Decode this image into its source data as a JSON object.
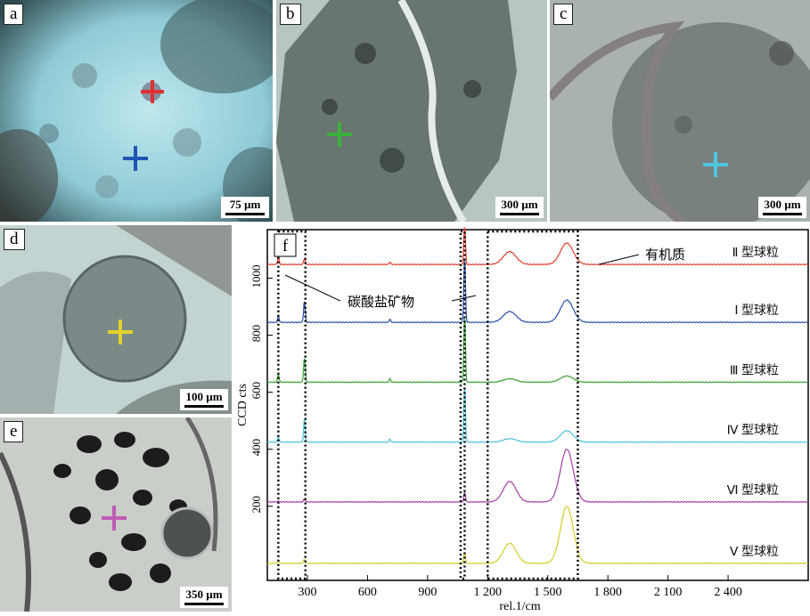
{
  "colors": {
    "marker_a_red": "#e23030",
    "marker_a_blue": "#1f55b5",
    "marker_b": "#3bb13b",
    "marker_c": "#4ec6df",
    "marker_d": "#e3d12a",
    "marker_e": "#c05ab4",
    "series_II": "#e53a2c",
    "series_I": "#2b4faa",
    "series_III": "#3aa335",
    "series_IV": "#4bc4d6",
    "series_VI": "#a43ea8",
    "series_V": "#d4cd2a"
  },
  "panels": [
    {
      "label": "a",
      "scale": "75 µm"
    },
    {
      "label": "b",
      "scale": "300 µm"
    },
    {
      "label": "c",
      "scale": "300 µm"
    },
    {
      "label": "d",
      "scale": "100 µm"
    },
    {
      "label": "e",
      "scale": "350 µm"
    }
  ],
  "chart_data": {
    "type": "line",
    "panel_label": "f",
    "xlabel": "rel.1/cm",
    "ylabel": "CCD cts",
    "xlim": [
      100,
      2800
    ],
    "ylim": [
      -60,
      1170
    ],
    "x_ticks": [
      "300",
      "600",
      "900",
      "1 200",
      "1 500",
      "1 800",
      "2 100",
      "2 400"
    ],
    "y_ticks": [
      "200",
      "400",
      "600",
      "800",
      "1000"
    ],
    "annotations": {
      "organic": "有机质",
      "carbonate": "碳酸盐矿物"
    },
    "dotted_boxes": [
      [
        155,
        290
      ],
      [
        1065,
        1085
      ],
      [
        1200,
        1650
      ]
    ],
    "series": [
      {
        "name": "Ⅱ 型球粒",
        "baseline": 1048,
        "peaks": [
          [
            155,
            25
          ],
          [
            285,
            20
          ],
          [
            712,
            8
          ],
          [
            1085,
            135
          ],
          [
            1310,
            45
          ],
          [
            1595,
            75
          ]
        ]
      },
      {
        "name": "Ⅰ 型球粒",
        "baseline": 845,
        "peaks": [
          [
            155,
            20
          ],
          [
            285,
            75
          ],
          [
            712,
            10
          ],
          [
            1085,
            230
          ],
          [
            1310,
            38
          ],
          [
            1595,
            78
          ]
        ]
      },
      {
        "name": "Ⅲ 型球粒",
        "baseline": 635,
        "peaks": [
          [
            155,
            28
          ],
          [
            285,
            85
          ],
          [
            712,
            12
          ],
          [
            1085,
            230
          ],
          [
            1310,
            12
          ],
          [
            1595,
            22
          ]
        ]
      },
      {
        "name": "Ⅳ 型球粒",
        "baseline": 425,
        "peaks": [
          [
            155,
            18
          ],
          [
            285,
            80
          ],
          [
            712,
            10
          ],
          [
            1085,
            195
          ],
          [
            1310,
            12
          ],
          [
            1595,
            40
          ]
        ]
      },
      {
        "name": "Ⅵ 型球粒",
        "baseline": 215,
        "peaks": [
          [
            155,
            4
          ],
          [
            285,
            10
          ],
          [
            1085,
            35
          ],
          [
            1310,
            72
          ],
          [
            1595,
            185
          ]
        ]
      },
      {
        "name": "Ⅴ 型球粒",
        "baseline": 0,
        "peaks": [
          [
            155,
            8
          ],
          [
            285,
            15
          ],
          [
            1085,
            35
          ],
          [
            1310,
            70
          ],
          [
            1595,
            200
          ]
        ]
      }
    ]
  }
}
